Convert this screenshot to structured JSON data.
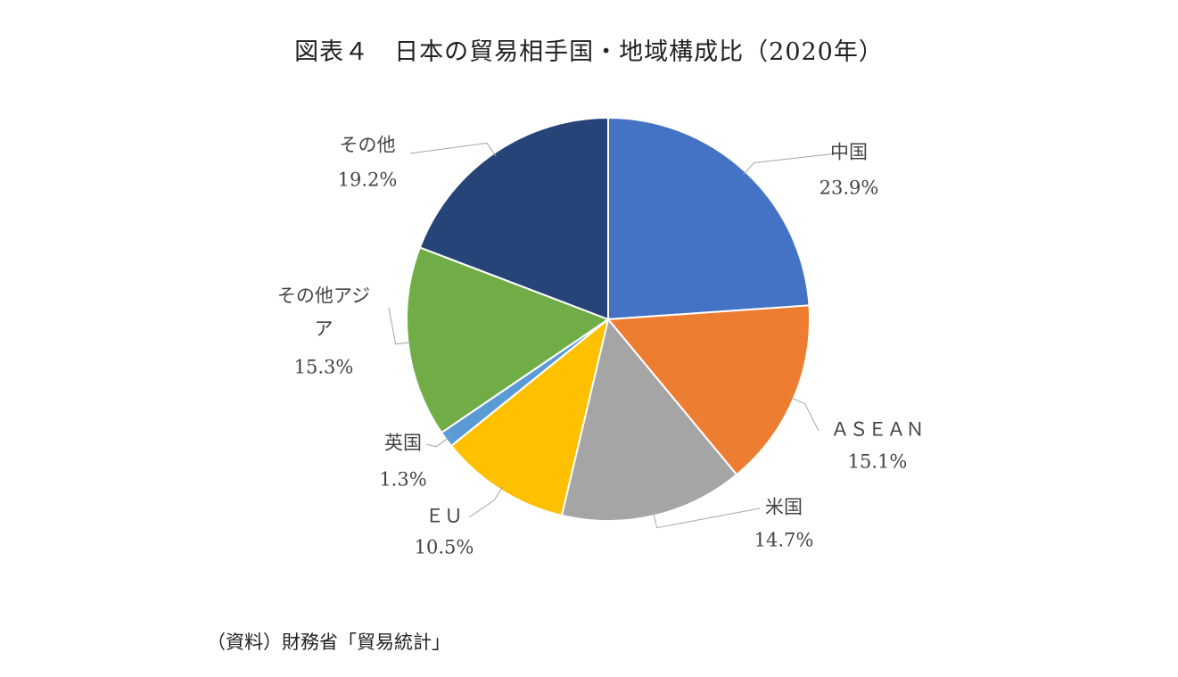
{
  "chart_data": {
    "type": "pie",
    "title": "図表４　日本の貿易相手国・地域構成比（2020年）",
    "slices": [
      {
        "label": "中国",
        "value": 23.9,
        "value_label": "23.9%",
        "color": "#4472C4"
      },
      {
        "label": "ＡＳＥＡＮ",
        "value": 15.1,
        "value_label": "15.1%",
        "color": "#ED7D31"
      },
      {
        "label": "米国",
        "value": 14.7,
        "value_label": "14.7%",
        "color": "#A5A5A5"
      },
      {
        "label": "ＥＵ",
        "value": 10.5,
        "value_label": "10.5%",
        "color": "#FFC000"
      },
      {
        "label": "英国",
        "value": 1.3,
        "value_label": "1.3%",
        "color": "#5B9BD5"
      },
      {
        "label": "その他アジア",
        "value": 15.3,
        "value_label": "15.3%",
        "color": "#70AD47"
      },
      {
        "label": "その他",
        "value": 19.2,
        "value_label": "19.2%",
        "color": "#264478"
      }
    ],
    "start_angle": "12 o'clock",
    "direction": "clockwise",
    "legend": "none"
  },
  "source": "（資料）財務省「貿易統計」"
}
